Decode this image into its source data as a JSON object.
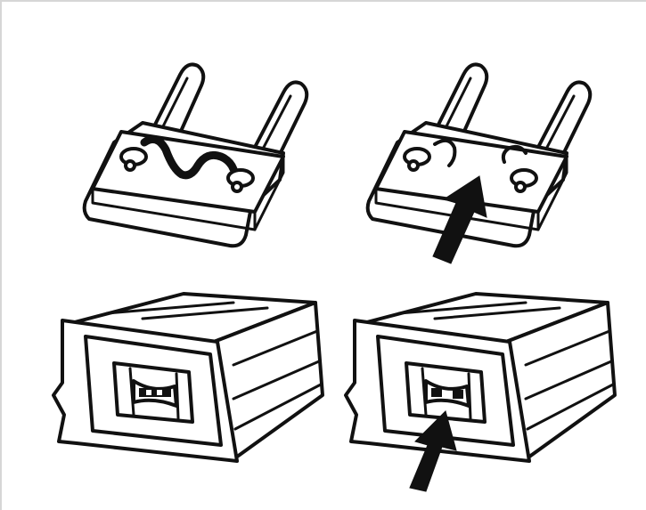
{
  "figure": {
    "panels": [
      {
        "name": "intact-blade-fuse"
      },
      {
        "name": "blown-blade-fuse"
      },
      {
        "name": "intact-cartridge-fuse"
      },
      {
        "name": "blown-cartridge-fuse"
      }
    ],
    "colors": {
      "ink": "#111111",
      "paper": "#ffffff"
    }
  }
}
